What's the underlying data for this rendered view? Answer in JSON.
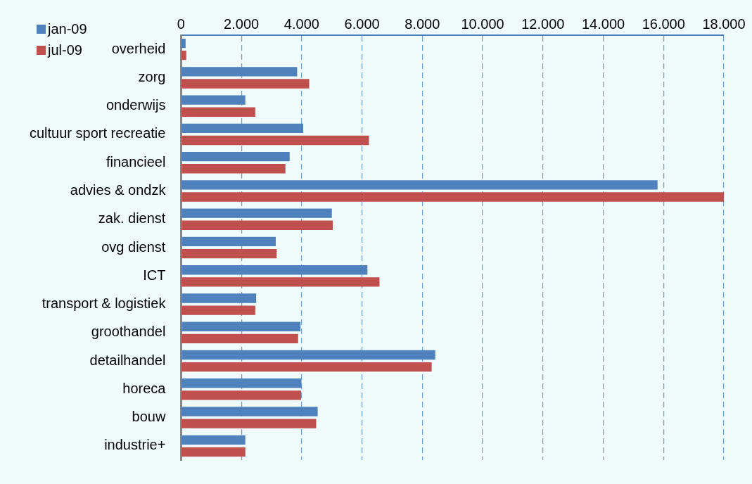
{
  "chart_data": {
    "type": "bar",
    "orientation": "horizontal",
    "categories": [
      "overheid",
      "zorg",
      "onderwijs",
      "cultuur sport recreatie",
      "financieel",
      "advies & ondzk",
      "zak. dienst",
      "ovg dienst",
      "ICT",
      "transport & logistiek",
      "groothandel",
      "detailhandel",
      "horeca",
      "bouw",
      "industrie+"
    ],
    "series": [
      {
        "name": "jan-09",
        "color": "#4f81bd",
        "values": [
          150,
          3850,
          2130,
          4050,
          3600,
          15800,
          5000,
          3140,
          6180,
          2490,
          3960,
          8430,
          3990,
          4530,
          2130
        ]
      },
      {
        "name": "jul-09",
        "color": "#c0504d",
        "values": [
          170,
          4250,
          2460,
          6230,
          3460,
          18000,
          5030,
          3170,
          6580,
          2460,
          3880,
          8310,
          3980,
          4480,
          2130
        ]
      }
    ],
    "xlim": [
      0,
      18000
    ],
    "xticks": [
      0,
      {
        "value": 2000,
        "label": "2.000"
      },
      {
        "value": 4000,
        "label": "4.000"
      },
      {
        "value": 6000,
        "label": "6.000"
      },
      {
        "value": 8000,
        "label": "8.000"
      },
      {
        "value": 10000,
        "label": "10.000"
      },
      {
        "value": 12000,
        "label": "12.000"
      },
      {
        "value": 14000,
        "label": "14.000"
      },
      {
        "value": 16000,
        "label": "16.000"
      },
      {
        "value": 18000,
        "label": "18.000"
      }
    ],
    "grid": "x",
    "legend": "top left"
  }
}
